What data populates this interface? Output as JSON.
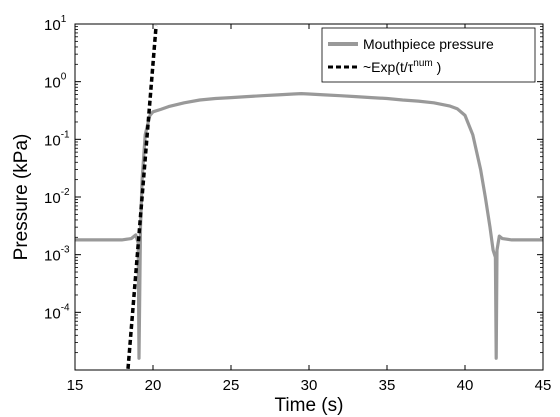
{
  "chart_data": {
    "type": "line",
    "xlabel": "Time (s)",
    "ylabel": "Pressure (kPa)",
    "xlim": [
      15,
      45
    ],
    "ylim": [
      1e-05,
      10
    ],
    "yscale": "log",
    "grid": false,
    "legend_position": "top-right",
    "xticks": [
      {
        "value": 15,
        "label": "15"
      },
      {
        "value": 20,
        "label": "20"
      },
      {
        "value": 25,
        "label": "25"
      },
      {
        "value": 30,
        "label": "30"
      },
      {
        "value": 35,
        "label": "35"
      },
      {
        "value": 40,
        "label": "40"
      },
      {
        "value": 45,
        "label": "45"
      }
    ],
    "yticks": [
      {
        "value": 10,
        "base": "10",
        "exp": "1"
      },
      {
        "value": 1,
        "base": "10",
        "exp": "0"
      },
      {
        "value": 0.1,
        "base": "10",
        "exp": "-1"
      },
      {
        "value": 0.01,
        "base": "10",
        "exp": "-2"
      },
      {
        "value": 0.001,
        "base": "10",
        "exp": "-3"
      },
      {
        "value": 0.0001,
        "base": "10",
        "exp": "-4"
      }
    ],
    "series": [
      {
        "name": "Mouthpiece pressure",
        "style": "solid",
        "color": "#999999",
        "x": [
          15,
          16,
          17,
          18,
          18.6,
          18.9,
          19.05,
          19.1,
          19.2,
          19.3,
          19.5,
          19.8,
          20.0,
          20.5,
          21,
          22,
          23,
          24,
          25,
          26,
          27,
          28,
          29,
          29.5,
          30,
          31,
          32,
          33,
          34,
          35,
          36,
          37,
          38,
          39,
          39.5,
          40,
          40.5,
          41,
          41.3,
          41.6,
          41.8,
          41.95,
          42.0,
          42.05,
          42.2,
          42.4,
          43,
          44,
          45
        ],
        "y": [
          0.0018,
          0.0018,
          0.0018,
          0.0018,
          0.0019,
          0.0022,
          0.0016,
          1.6e-05,
          0.003,
          0.02,
          0.12,
          0.26,
          0.3,
          0.33,
          0.37,
          0.43,
          0.48,
          0.51,
          0.53,
          0.55,
          0.57,
          0.59,
          0.61,
          0.62,
          0.61,
          0.59,
          0.57,
          0.55,
          0.53,
          0.51,
          0.48,
          0.46,
          0.43,
          0.38,
          0.34,
          0.26,
          0.12,
          0.03,
          0.01,
          0.003,
          0.0012,
          0.0009,
          1.6e-05,
          0.0012,
          0.0021,
          0.0019,
          0.0018,
          0.0018,
          0.0018
        ]
      },
      {
        "name": "~Exp(t/τnum )",
        "legend_main": "~Exp(t/τ",
        "legend_sup": "num",
        "legend_tail": " )",
        "style": "dashed",
        "color": "#000000",
        "x": [
          18.4,
          20.2
        ],
        "y": [
          1.05e-05,
          9.3
        ]
      }
    ]
  }
}
